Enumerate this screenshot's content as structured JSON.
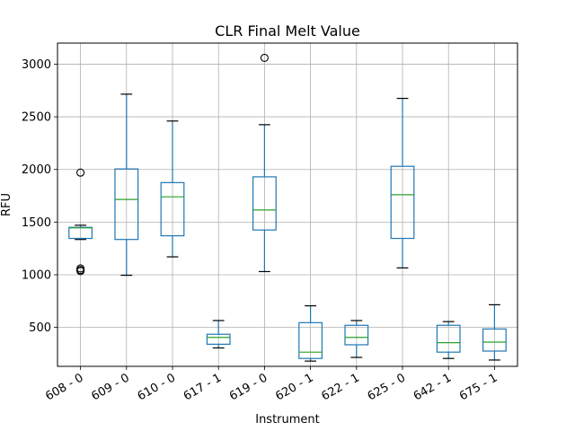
{
  "chart_data": {
    "type": "boxplot",
    "title": "CLR Final Melt Value",
    "xlabel": "Instrument",
    "ylabel": "RFU",
    "ylim": [
      130,
      3200
    ],
    "yticks": [
      500,
      1000,
      1500,
      2000,
      2500,
      3000
    ],
    "grid": true,
    "legend": "none",
    "colors": {
      "box": "#1f77b4",
      "median": "#2ca02c",
      "grid": "#b0b0b0",
      "axis": "#000000"
    },
    "categories": [
      "608 - 0",
      "609 - 0",
      "610 - 0",
      "617 - 1",
      "619 - 0",
      "620 - 1",
      "622 - 1",
      "625 - 0",
      "642 - 1",
      "675 - 1"
    ],
    "boxes": [
      {
        "whisker_low": 1335,
        "q1": 1345,
        "median": 1445,
        "q3": 1450,
        "whisker_high": 1470,
        "outliers": [
          1970,
          1060,
          1045,
          1035
        ]
      },
      {
        "whisker_low": 995,
        "q1": 1335,
        "median": 1715,
        "q3": 2005,
        "whisker_high": 2715,
        "outliers": []
      },
      {
        "whisker_low": 1170,
        "q1": 1370,
        "median": 1740,
        "q3": 1875,
        "whisker_high": 2460,
        "outliers": []
      },
      {
        "whisker_low": 305,
        "q1": 340,
        "median": 405,
        "q3": 435,
        "whisker_high": 565,
        "outliers": []
      },
      {
        "whisker_low": 1030,
        "q1": 1425,
        "median": 1615,
        "q3": 1930,
        "whisker_high": 2425,
        "outliers": [
          3060
        ]
      },
      {
        "whisker_low": 180,
        "q1": 205,
        "median": 265,
        "q3": 545,
        "whisker_high": 705,
        "outliers": []
      },
      {
        "whisker_low": 215,
        "q1": 335,
        "median": 405,
        "q3": 520,
        "whisker_high": 565,
        "outliers": []
      },
      {
        "whisker_low": 1065,
        "q1": 1345,
        "median": 1760,
        "q3": 2030,
        "whisker_high": 2675,
        "outliers": []
      },
      {
        "whisker_low": 205,
        "q1": 265,
        "median": 355,
        "q3": 520,
        "whisker_high": 555,
        "outliers": []
      },
      {
        "whisker_low": 190,
        "q1": 275,
        "median": 360,
        "q3": 485,
        "whisker_high": 715,
        "outliers": []
      }
    ]
  }
}
